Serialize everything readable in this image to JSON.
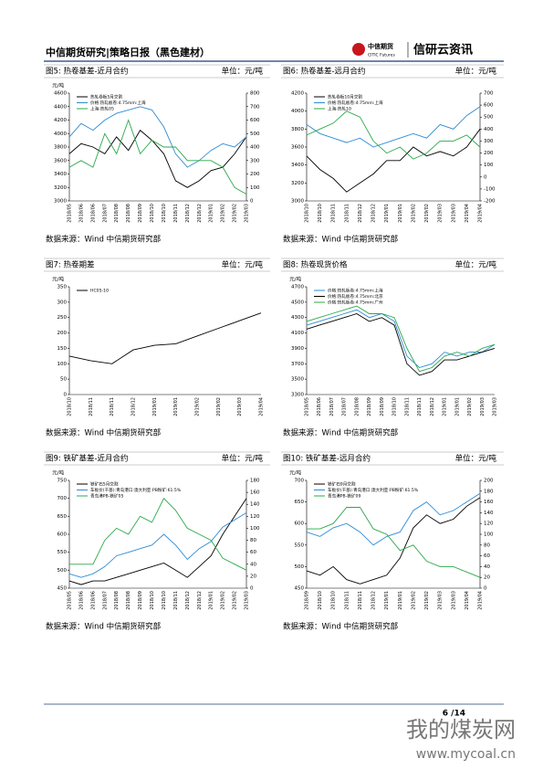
{
  "header": {
    "title": "中信期货研究|策略日报（黑色建材）",
    "logo_cn": "中信期货",
    "logo_en": "CITIC Futures",
    "brand": "信研云资讯"
  },
  "chart_data": [
    {
      "type": "line",
      "title": "图5: 热卷基差-近月合约",
      "unit": "单位：元/吨",
      "y_label": "元/吨",
      "source": "数据来源：Wind  中信期货研究部",
      "categories": [
        "2018/05",
        "2018/06",
        "2018/06",
        "2018/07",
        "2018/08",
        "2018/08",
        "2018/09",
        "2018/10",
        "2018/10",
        "2018/11",
        "2018/12",
        "2018/12",
        "2019/01",
        "2019/02",
        "2019/02",
        "2019/03"
      ],
      "series": [
        {
          "name": "热轧卷板5月交割",
          "color": "#000000",
          "values": [
            3700,
            3850,
            3800,
            3700,
            3950,
            3750,
            4050,
            3900,
            3700,
            3300,
            3200,
            3300,
            3450,
            3500,
            3700,
            3950
          ]
        },
        {
          "name": "价格:热轧板卷:4.75mm:上海",
          "color": "#2d8bd6",
          "values": [
            3950,
            4150,
            4050,
            4200,
            4300,
            4350,
            4400,
            4350,
            4100,
            3700,
            3500,
            3600,
            3750,
            3850,
            3800,
            3950
          ]
        },
        {
          "name": "上海-热轧05",
          "color": "#2ba84a",
          "axis": "y2",
          "values": [
            250,
            300,
            250,
            500,
            350,
            600,
            350,
            450,
            400,
            400,
            300,
            300,
            300,
            250,
            100,
            50
          ]
        }
      ],
      "ylim": [
        3000,
        4600
      ],
      "yticks": [
        3000,
        3200,
        3400,
        3600,
        3800,
        4000,
        4200,
        4400,
        4600
      ],
      "y2lim": [
        0,
        800
      ],
      "y2ticks": [
        0,
        100,
        200,
        300,
        400,
        500,
        600,
        700,
        800
      ]
    },
    {
      "type": "line",
      "title": "图6: 热卷基差-远月合约",
      "unit": "单位：元/吨",
      "source": "数据来源：Wind  中信期货研究部",
      "categories": [
        "2018/10",
        "2018/10",
        "2018/11",
        "2018/11",
        "2018/12",
        "2018/12",
        "2019/01",
        "2019/01",
        "2019/02",
        "2019/02",
        "2019/03",
        "2019/03",
        "2019/04",
        "2019/04"
      ],
      "series": [
        {
          "name": "热轧卷板10月交割",
          "color": "#000000",
          "values": [
            3500,
            3350,
            3250,
            3100,
            3200,
            3300,
            3450,
            3450,
            3600,
            3500,
            3550,
            3500,
            3600,
            3800
          ]
        },
        {
          "name": "价格:热轧板卷:4.75mm:上海",
          "color": "#2d8bd6",
          "values": [
            3850,
            3750,
            3700,
            3650,
            3700,
            3600,
            3650,
            3700,
            3750,
            3700,
            3850,
            3800,
            3950,
            4050
          ]
        },
        {
          "name": "上海-热轧10",
          "color": "#2ba84a",
          "axis": "y2",
          "values": [
            350,
            400,
            450,
            550,
            500,
            300,
            200,
            250,
            150,
            200,
            300,
            300,
            350,
            250
          ]
        }
      ],
      "ylim": [
        3000,
        4200
      ],
      "yticks": [
        3000,
        3200,
        3400,
        3600,
        3800,
        4000,
        4200
      ],
      "y2lim": [
        -200,
        700
      ],
      "y2ticks": [
        -200,
        -100,
        0,
        100,
        200,
        300,
        400,
        500,
        600,
        700
      ]
    },
    {
      "type": "line",
      "title": "图7: 热卷期差",
      "unit": "单位：元/吨",
      "y_label": "元/吨",
      "source": "数据来源：Wind  中信期货研究部",
      "categories": [
        "2018/10",
        "2018/11",
        "2018/11",
        "2018/12",
        "2019/01",
        "2019/01",
        "2019/02",
        "2019/02",
        "2019/03",
        "2019/04"
      ],
      "series": [
        {
          "name": "HC05-10",
          "color": "#000000",
          "values": [
            125,
            110,
            100,
            145,
            160,
            165,
            190,
            215,
            240,
            265
          ]
        }
      ],
      "ylim": [
        0,
        350
      ],
      "yticks": [
        0,
        50,
        100,
        150,
        200,
        250,
        300,
        350
      ]
    },
    {
      "type": "line",
      "title": "图8: 热卷现货价格",
      "unit": "单位：元/吨",
      "y_label": "元/吨",
      "source": "数据来源：Wind  中信期货研究部",
      "categories": [
        "2018/05",
        "2018/06",
        "2018/07",
        "2018/07",
        "2018/08",
        "2018/09",
        "2018/09",
        "2018/10",
        "2018/11",
        "2018/11",
        "2018/12",
        "2019/01",
        "2019/01",
        "2019/02",
        "2019/03",
        "2019/03"
      ],
      "series": [
        {
          "name": "价格:热轧板卷:4.75mm:上海",
          "color": "#2d8bd6",
          "values": [
            4200,
            4250,
            4300,
            4350,
            4400,
            4300,
            4350,
            4250,
            3800,
            3650,
            3700,
            3850,
            3800,
            3850,
            3850,
            3950
          ]
        },
        {
          "name": "价格:热轧板卷:4.75mm:北京",
          "color": "#000000",
          "values": [
            4150,
            4200,
            4250,
            4300,
            4350,
            4250,
            4300,
            4200,
            3700,
            3550,
            3600,
            3750,
            3750,
            3800,
            3850,
            3900
          ]
        },
        {
          "name": "价格:热轧板卷:4.75mm:广州",
          "color": "#2ba84a",
          "values": [
            4250,
            4300,
            4350,
            4400,
            4450,
            4350,
            4350,
            4300,
            3900,
            3600,
            3650,
            3800,
            3850,
            3800,
            3900,
            3950
          ]
        }
      ],
      "ylim": [
        3300,
        4700
      ],
      "yticks": [
        3300,
        3500,
        3700,
        3900,
        4100,
        4300,
        4500,
        4700
      ]
    },
    {
      "type": "line",
      "title": "图9: 铁矿基差-近月合约",
      "unit": "单位：元/吨",
      "y_label": "元/吨",
      "source": "数据来源：Wind  中信期货研究部",
      "categories": [
        "2018/05",
        "2018/06",
        "2018/06",
        "2018/07",
        "2018/08",
        "2018/08",
        "2018/09",
        "2018/10",
        "2018/10",
        "2018/11",
        "2018/12",
        "2018/12",
        "2019/01",
        "2019/02",
        "2019/02",
        "2019/03"
      ],
      "series": [
        {
          "name": "铁矿石5月交割",
          "color": "#000000",
          "values": [
            470,
            460,
            470,
            470,
            480,
            490,
            500,
            510,
            520,
            500,
            480,
            510,
            540,
            600,
            650,
            700
          ]
        },
        {
          "name": "车板价(干基):青岛港口:澳大利亚:PB粉矿:61.5%",
          "color": "#2d8bd6",
          "values": [
            490,
            480,
            490,
            510,
            540,
            550,
            560,
            570,
            600,
            570,
            530,
            560,
            580,
            620,
            640,
            660
          ]
        },
        {
          "name": "青岛港PB-铁矿05",
          "color": "#2ba84a",
          "axis": "y2",
          "values": [
            40,
            40,
            40,
            80,
            100,
            90,
            120,
            110,
            150,
            130,
            100,
            90,
            80,
            50,
            40,
            30
          ]
        }
      ],
      "ylim": [
        450,
        750
      ],
      "yticks": [
        450,
        500,
        550,
        600,
        650,
        700,
        750
      ],
      "y2lim": [
        0,
        180
      ],
      "y2ticks": [
        0,
        20,
        40,
        60,
        80,
        100,
        120,
        140,
        160,
        180
      ]
    },
    {
      "type": "line",
      "title": "图10: 铁矿基差-远月合约",
      "unit": "单位：元/吨",
      "y_label": "元/吨",
      "source": "数据来源：Wind  中信期货研究部",
      "categories": [
        "2018/09",
        "2018/10",
        "2018/10",
        "2018/11",
        "2018/11",
        "2018/12",
        "2019/01",
        "2019/01",
        "2019/02",
        "2019/02",
        "2019/03",
        "2019/03",
        "2019/04",
        "2019/04"
      ],
      "series": [
        {
          "name": "铁矿石9月交割",
          "color": "#000000",
          "values": [
            490,
            480,
            500,
            470,
            460,
            470,
            480,
            520,
            590,
            620,
            600,
            610,
            640,
            660
          ]
        },
        {
          "name": "车板价(干基):青岛港口:澳大利亚:PB粉矿:61.5%",
          "color": "#2d8bd6",
          "values": [
            580,
            570,
            590,
            600,
            580,
            550,
            570,
            580,
            630,
            650,
            620,
            630,
            650,
            670
          ]
        },
        {
          "name": "青岛港PB-铁矿09",
          "color": "#2ba84a",
          "axis": "y2",
          "values": [
            110,
            110,
            120,
            150,
            150,
            110,
            100,
            70,
            80,
            50,
            40,
            40,
            30,
            20
          ]
        }
      ],
      "ylim": [
        450,
        700
      ],
      "yticks": [
        450,
        500,
        550,
        600,
        650,
        700
      ],
      "y2lim": [
        0,
        200
      ],
      "y2ticks": [
        0,
        20,
        40,
        60,
        80,
        100,
        120,
        140,
        160,
        180,
        200
      ]
    }
  ],
  "footer": {
    "page": "6 /14"
  },
  "watermark": {
    "name": "我的煤炭网",
    "url": "www.mycoal.cn"
  }
}
